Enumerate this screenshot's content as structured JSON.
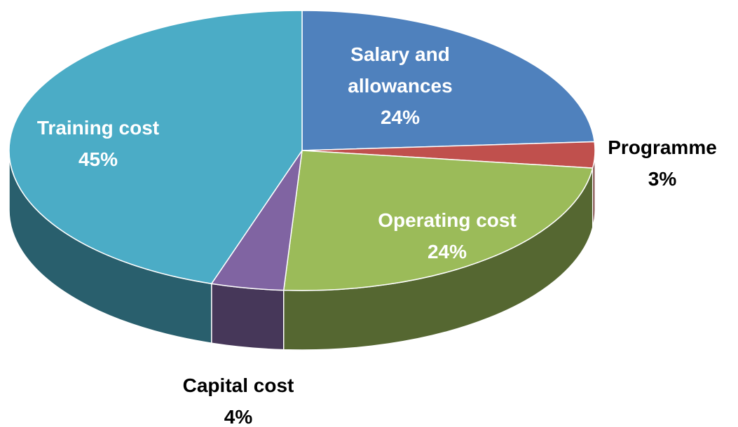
{
  "chart_data": {
    "type": "pie",
    "categories": [
      "Salary and allowances",
      "Programme",
      "Operating cost",
      "Capital cost",
      "Training cost"
    ],
    "values": [
      24,
      3,
      24,
      4,
      45
    ],
    "value_labels": [
      "24%",
      "3%",
      "24%",
      "4%",
      "45%"
    ],
    "colors": [
      "#4f81bd",
      "#c0504d",
      "#9bbb59",
      "#8064a2",
      "#4bacc6"
    ]
  }
}
